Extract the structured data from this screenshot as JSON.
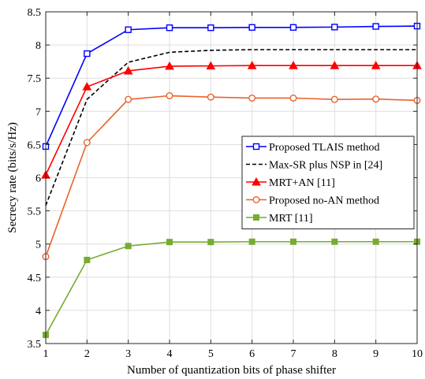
{
  "chart_data": {
    "type": "line",
    "xlabel": "Number of quantization bits of phase shifter",
    "ylabel": "Secrecy rate (bits/s/Hz)",
    "xlim": [
      1,
      10
    ],
    "ylim": [
      3.5,
      8.5
    ],
    "xticks": [
      1,
      2,
      3,
      4,
      5,
      6,
      7,
      8,
      9,
      10
    ],
    "yticks": [
      3.5,
      4,
      4.5,
      5,
      5.5,
      6,
      6.5,
      7,
      7.5,
      8,
      8.5
    ],
    "ytick_labels": [
      "3.5",
      "4",
      "4.5",
      "5",
      "5.5",
      "6",
      "6.5",
      "7",
      "7.5",
      "8",
      "8.5"
    ],
    "grid": true,
    "legend_position": "center-right",
    "x": [
      1,
      2,
      3,
      4,
      5,
      6,
      7,
      8,
      9,
      10
    ],
    "series": [
      {
        "name": "Proposed TLAIS method",
        "color": "#0000ff",
        "marker": "square",
        "dash": "solid",
        "values": [
          6.47,
          7.87,
          8.23,
          8.26,
          8.26,
          8.265,
          8.265,
          8.27,
          8.28,
          8.285
        ]
      },
      {
        "name": "Max-SR plus NSP in [24]",
        "color": "#000000",
        "marker": "none",
        "dash": "dashed",
        "values": [
          5.58,
          7.18,
          7.74,
          7.89,
          7.92,
          7.93,
          7.93,
          7.93,
          7.93,
          7.93
        ]
      },
      {
        "name": "MRT+AN [11]",
        "color": "#ff0000",
        "marker": "triangle",
        "dash": "solid",
        "values": [
          6.04,
          7.37,
          7.61,
          7.68,
          7.685,
          7.69,
          7.69,
          7.69,
          7.69,
          7.69
        ]
      },
      {
        "name": "Proposed no-AN method",
        "color": "#e8632b",
        "marker": "circle",
        "dash": "solid",
        "values": [
          4.81,
          6.53,
          7.18,
          7.235,
          7.215,
          7.2,
          7.2,
          7.18,
          7.185,
          7.165
        ]
      },
      {
        "name": "MRT [11]",
        "color": "#77ac30",
        "marker": "square-filled",
        "dash": "solid",
        "values": [
          3.63,
          4.76,
          4.97,
          5.03,
          5.03,
          5.035,
          5.035,
          5.035,
          5.035,
          5.035
        ]
      }
    ]
  }
}
